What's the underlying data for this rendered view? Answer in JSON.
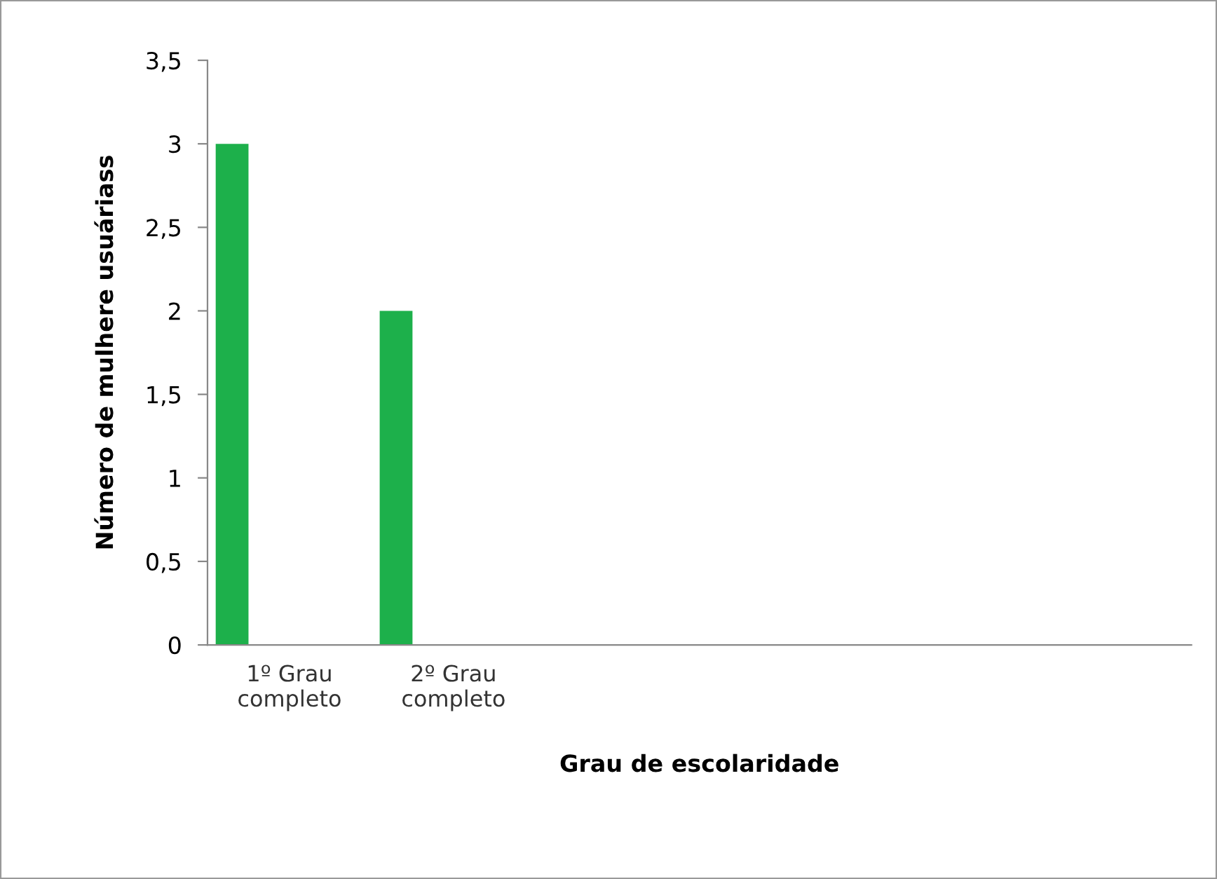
{
  "chart_data": {
    "type": "bar",
    "xlabel": "Grau de escolaridade",
    "ylabel": "Número de mulhere usuáriass",
    "categories": [
      "1º Grau\ncompleto",
      "2º Grau\ncompleto",
      null,
      null,
      null,
      null
    ],
    "values": [
      3,
      2,
      null,
      null,
      null,
      null
    ],
    "color": "#1db04b",
    "ylim": [
      0,
      3.5
    ],
    "yticks": [
      0,
      {
        "value": 0.5,
        "label": "0,5"
      },
      1,
      {
        "value": 1.5,
        "label": "1,5"
      },
      2,
      {
        "value": 2.5,
        "label": "2,5"
      },
      3,
      {
        "value": 3.5,
        "label": "3,5"
      }
    ],
    "grid": false,
    "legend": false
  }
}
